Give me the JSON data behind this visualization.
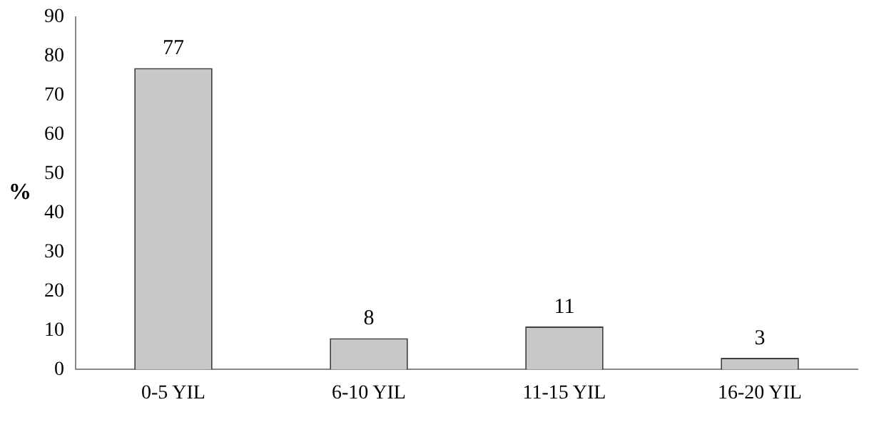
{
  "chart_data": {
    "type": "bar",
    "ylabel": "%",
    "categories": [
      "0-5 YIL",
      "6-10 YIL",
      "11-15 YIL",
      "16-20 YIL"
    ],
    "values": [
      77,
      8,
      11,
      3
    ],
    "color": "#c8c8c8",
    "ylim": [
      0,
      90
    ],
    "yticks": [
      0,
      10,
      20,
      30,
      40,
      50,
      60,
      70,
      80,
      90
    ],
    "data_labels": true,
    "grid": false,
    "legend": false
  }
}
